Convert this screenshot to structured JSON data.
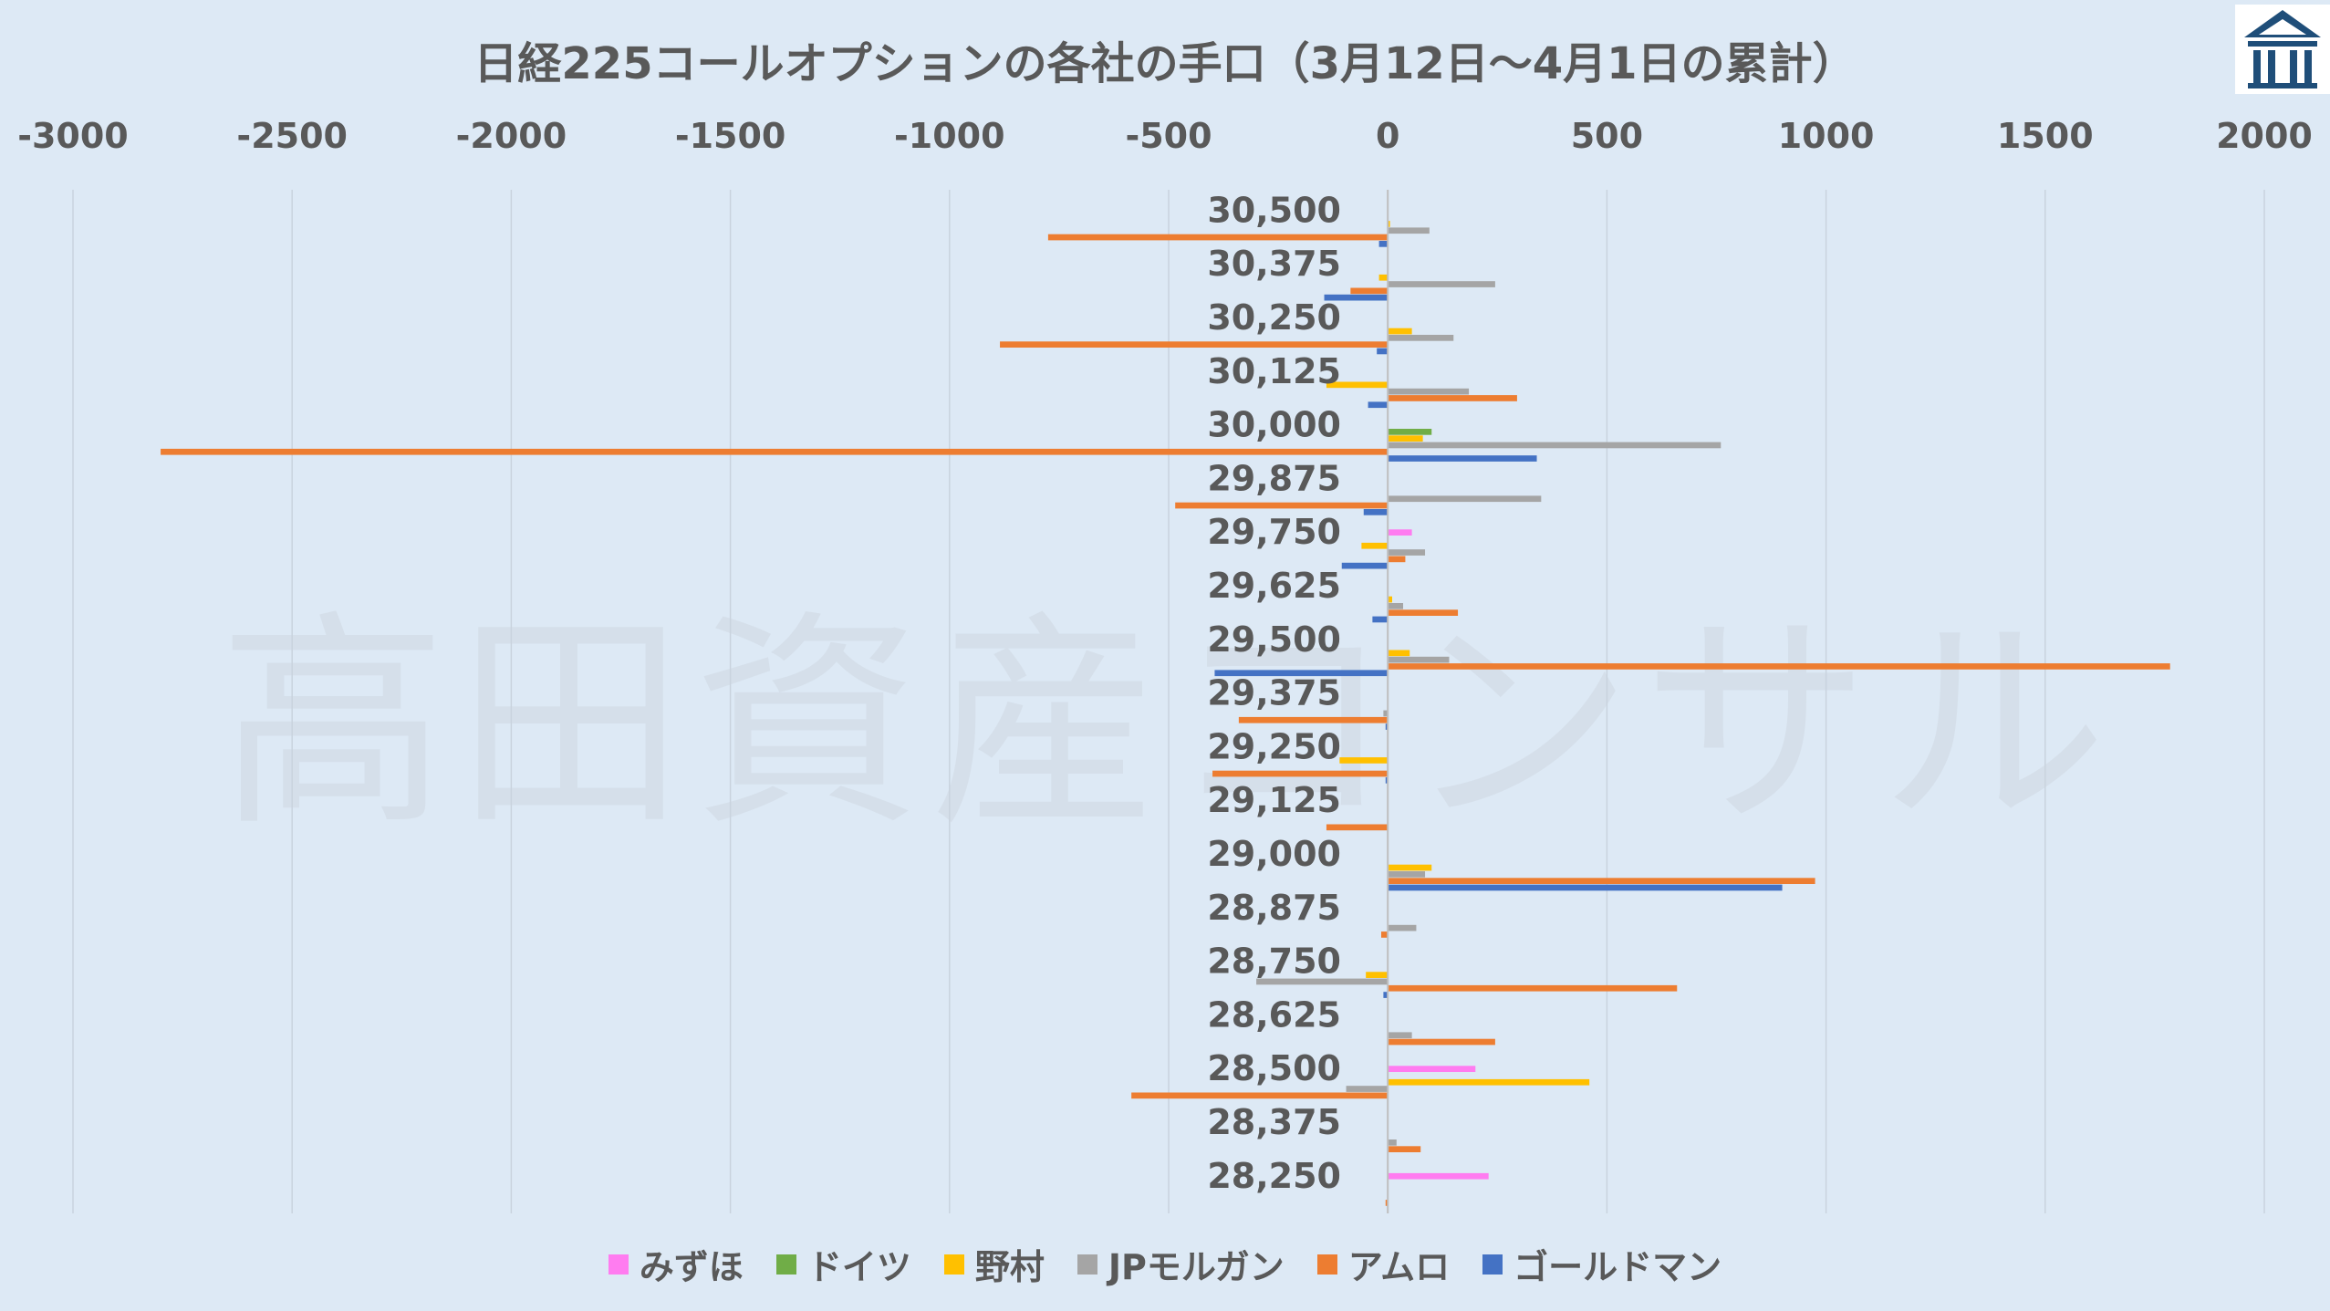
{
  "watermark": "高田資産コンサル",
  "chart_data": {
    "type": "bar",
    "orientation": "horizontal",
    "title": "日経225コールオプションの各社の手口（3月12日～4月1日の累計）",
    "xlim": [
      -3000,
      2000
    ],
    "x_ticks": [
      -3000,
      -2500,
      -2000,
      -1500,
      -1000,
      -500,
      0,
      500,
      1000,
      1500,
      2000
    ],
    "x_tick_labels": [
      "-3000",
      "-2500",
      "-2000",
      "-1500",
      "-1000",
      "-500",
      "0",
      "500",
      "1000",
      "1500",
      "2000"
    ],
    "axis_position": "top",
    "grid": true,
    "legend_position": "bottom",
    "categories": [
      "30,500",
      "30,375",
      "30,250",
      "30,125",
      "30,000",
      "29,875",
      "29,750",
      "29,625",
      "29,500",
      "29,375",
      "29,250",
      "29,125",
      "29,000",
      "28,875",
      "28,750",
      "28,625",
      "28,500",
      "28,375",
      "28,250"
    ],
    "series": [
      {
        "name": "みずほ",
        "color": "#ff7cf0",
        "values": [
          0,
          0,
          0,
          0,
          0,
          0,
          55,
          0,
          0,
          0,
          0,
          0,
          0,
          0,
          0,
          0,
          200,
          0,
          230
        ]
      },
      {
        "name": "ドイツ",
        "color": "#70ad47",
        "values": [
          0,
          0,
          0,
          0,
          100,
          0,
          0,
          0,
          0,
          0,
          0,
          0,
          0,
          0,
          0,
          0,
          0,
          0,
          0
        ]
      },
      {
        "name": "野村",
        "color": "#ffc000",
        "values": [
          5,
          -20,
          55,
          -140,
          80,
          0,
          -60,
          10,
          50,
          0,
          -110,
          0,
          100,
          0,
          -50,
          0,
          460,
          0,
          0
        ]
      },
      {
        "name": "JPモルガン",
        "color": "#a5a5a5",
        "values": [
          95,
          245,
          150,
          185,
          760,
          350,
          85,
          35,
          140,
          -10,
          0,
          0,
          85,
          65,
          -300,
          55,
          -95,
          20,
          0
        ]
      },
      {
        "name": "アムロ",
        "color": "#ed7d31",
        "values": [
          -775,
          -85,
          -885,
          295,
          -2800,
          -485,
          40,
          160,
          1785,
          -340,
          -400,
          -140,
          975,
          -15,
          660,
          245,
          -585,
          75,
          -5
        ]
      },
      {
        "name": "ゴールドマン",
        "color": "#4472c4",
        "values": [
          -20,
          -145,
          -25,
          -45,
          340,
          -55,
          -105,
          -35,
          -395,
          -5,
          -5,
          0,
          900,
          0,
          -10,
          0,
          0,
          0,
          0
        ]
      }
    ]
  }
}
